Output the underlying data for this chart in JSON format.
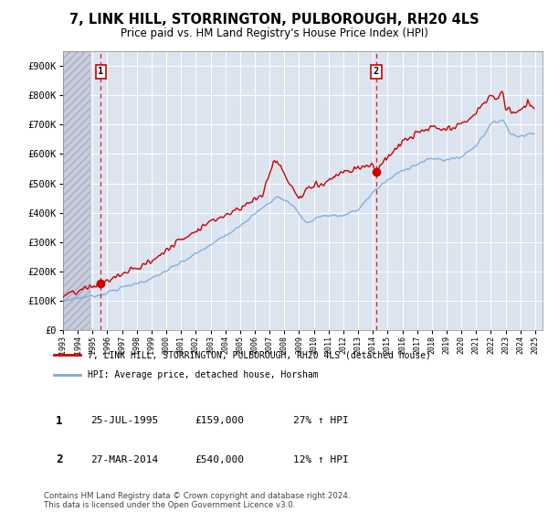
{
  "title": "7, LINK HILL, STORRINGTON, PULBOROUGH, RH20 4LS",
  "subtitle": "Price paid vs. HM Land Registry's House Price Index (HPI)",
  "legend_line1": "7, LINK HILL, STORRINGTON, PULBOROUGH, RH20 4LS (detached house)",
  "legend_line2": "HPI: Average price, detached house, Horsham",
  "footnote": "Contains HM Land Registry data © Crown copyright and database right 2024.\nThis data is licensed under the Open Government Licence v3.0.",
  "sale1_date": "25-JUL-1995",
  "sale1_price": "£159,000",
  "sale1_hpi": "27% ↑ HPI",
  "sale2_date": "27-MAR-2014",
  "sale2_price": "£540,000",
  "sale2_hpi": "12% ↑ HPI",
  "sale1_x": 1995.56,
  "sale1_y": 159000,
  "sale2_x": 2014.23,
  "sale2_y": 540000,
  "ylim": [
    0,
    950000
  ],
  "xlim": [
    1993.0,
    2025.5
  ],
  "yticks": [
    0,
    100000,
    200000,
    300000,
    400000,
    500000,
    600000,
    700000,
    800000,
    900000
  ],
  "ytick_labels": [
    "£0",
    "£100K",
    "£200K",
    "£300K",
    "£400K",
    "£500K",
    "£600K",
    "£700K",
    "£800K",
    "£900K"
  ],
  "plot_bg_color": "#dce4f0",
  "grid_color": "#ffffff",
  "red_color": "#cc0000",
  "blue_color": "#7aaadd",
  "hatch_bg": "#c8cedd"
}
